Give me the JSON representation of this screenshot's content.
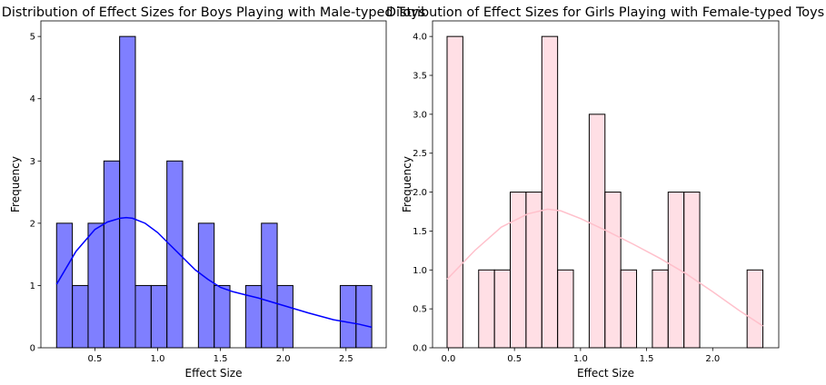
{
  "chart_data": [
    {
      "type": "bar",
      "subtype": "histogram-with-kde",
      "title": "Distribution of Effect Sizes for Boys Playing with Male-typed Toys",
      "xlabel": "Effect Size",
      "ylabel": "Frequency",
      "xlim": [
        0.07,
        2.82
      ],
      "ylim": [
        0,
        5.25
      ],
      "xticks": [
        0.5,
        1.0,
        1.5,
        2.0,
        2.5
      ],
      "xtick_labels": [
        "0.5",
        "1.0",
        "1.5",
        "2.0",
        "2.5"
      ],
      "yticks": [
        0,
        1,
        2,
        3,
        4,
        5
      ],
      "ytick_labels": [
        "0",
        "1",
        "2",
        "3",
        "4",
        "5"
      ],
      "bin_start": 0.195,
      "bin_width": 0.1255,
      "counts": [
        2,
        1,
        2,
        3,
        5,
        1,
        1,
        3,
        0,
        2,
        1,
        0,
        1,
        2,
        1,
        0,
        0,
        0,
        1,
        1
      ],
      "bar_color": "#0000ff",
      "bar_alpha": 0.5,
      "kde_color": "#0000ff",
      "kde": {
        "x": [
          0.195,
          0.35,
          0.5,
          0.6,
          0.7,
          0.75,
          0.8,
          0.9,
          1.0,
          1.1,
          1.2,
          1.3,
          1.4,
          1.5,
          1.6,
          1.7,
          1.8,
          1.9,
          2.0,
          2.2,
          2.4,
          2.6,
          2.705
        ],
        "y": [
          1.02,
          1.55,
          1.9,
          2.02,
          2.08,
          2.09,
          2.08,
          2.0,
          1.85,
          1.65,
          1.45,
          1.25,
          1.1,
          0.97,
          0.9,
          0.85,
          0.8,
          0.74,
          0.68,
          0.56,
          0.45,
          0.38,
          0.33
        ]
      }
    },
    {
      "type": "bar",
      "subtype": "histogram-with-kde",
      "title": "Distribution of Effect Sizes for Girls Playing with Female-typed Toys",
      "xlabel": "Effect Size",
      "ylabel": "Frequency",
      "xlim": [
        -0.12,
        2.5
      ],
      "ylim": [
        0,
        4.2
      ],
      "xticks": [
        0.0,
        0.5,
        1.0,
        1.5,
        2.0
      ],
      "xtick_labels": [
        "0.0",
        "0.5",
        "1.0",
        "1.5",
        "2.0"
      ],
      "yticks": [
        0,
        0.5,
        1.0,
        1.5,
        2.0,
        2.5,
        3.0,
        3.5,
        4.0
      ],
      "ytick_labels": [
        "0.0",
        "0.5",
        "1.0",
        "1.5",
        "2.0",
        "2.5",
        "3.0",
        "3.5",
        "4.0"
      ],
      "bin_start": -0.01,
      "bin_width": 0.1195,
      "counts": [
        4,
        0,
        1,
        1,
        2,
        2,
        4,
        1,
        0,
        3,
        2,
        1,
        0,
        1,
        2,
        2,
        0,
        0,
        0,
        1
      ],
      "bar_color": "#ffc0cb",
      "bar_alpha": 0.5,
      "kde_color": "#ffc0cb",
      "kde": {
        "x": [
          -0.01,
          0.2,
          0.4,
          0.6,
          0.75,
          0.85,
          1.0,
          1.2,
          1.4,
          1.6,
          1.8,
          2.0,
          2.2,
          2.38
        ],
        "y": [
          0.88,
          1.25,
          1.55,
          1.72,
          1.78,
          1.76,
          1.66,
          1.5,
          1.33,
          1.15,
          0.95,
          0.72,
          0.48,
          0.28
        ]
      }
    }
  ]
}
